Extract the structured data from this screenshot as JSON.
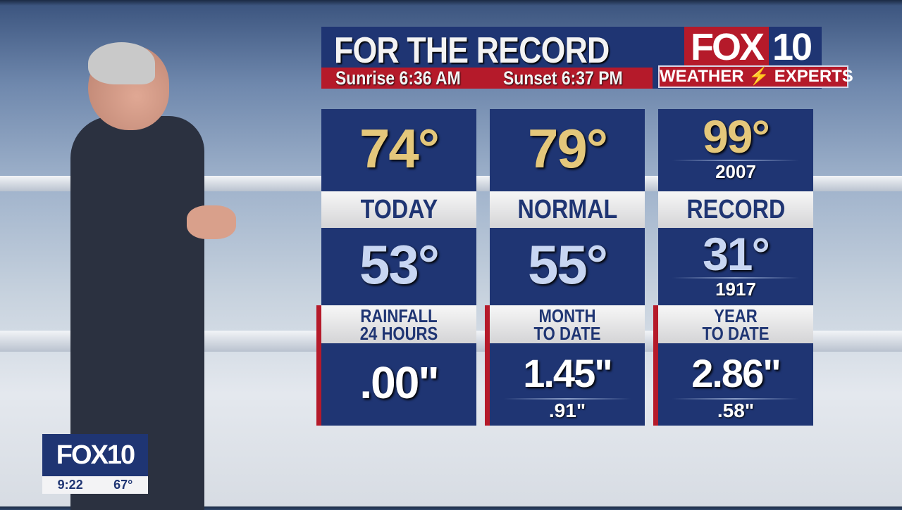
{
  "header": {
    "title": "FOR THE RECORD",
    "sunrise": "Sunrise 6:36 AM",
    "sunset": "Sunset 6:37 PM",
    "logo_fox": "FOX",
    "logo_num": "10",
    "tagline_left": "WEATHER",
    "tagline_right": "EXPERTS"
  },
  "columns": [
    {
      "high": "74°",
      "label": "TODAY",
      "low": "53°",
      "rain_label_1": "RAINFALL",
      "rain_label_2": "24 HOURS",
      "rain_value": ".00\""
    },
    {
      "high": "79°",
      "label": "NORMAL",
      "low": "55°",
      "rain_label_1": "MONTH",
      "rain_label_2": "TO DATE",
      "rain_value": "1.45\"",
      "rain_normal": ".91\""
    },
    {
      "high": "99°",
      "high_year": "2007",
      "label": "RECORD",
      "low": "31°",
      "low_year": "1917",
      "rain_label_1": "YEAR",
      "rain_label_2": "TO DATE",
      "rain_value": "2.86\"",
      "rain_normal": ".58\""
    }
  ],
  "bug": {
    "logo": "FOX10",
    "time": "9:22",
    "temp": "67°"
  },
  "colors": {
    "navy": "#1f3573",
    "red": "#b51a2a",
    "gold": "#e4c77b"
  }
}
